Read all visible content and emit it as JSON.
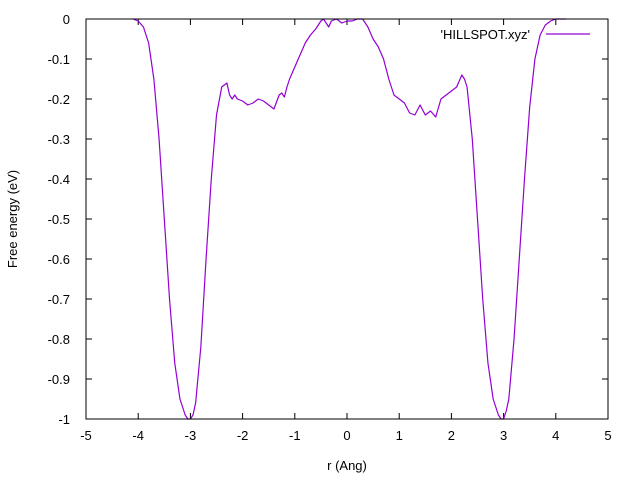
{
  "chart_data": {
    "type": "line",
    "title": "",
    "xlabel": "r (Ang)",
    "ylabel": "Free energy (eV)",
    "xlim": [
      -5,
      5
    ],
    "ylim": [
      -1,
      0
    ],
    "xticks": [
      -5,
      -4,
      -3,
      -2,
      -1,
      0,
      1,
      2,
      3,
      4,
      5
    ],
    "yticks": [
      0,
      -0.1,
      -0.2,
      -0.3,
      -0.4,
      -0.5,
      -0.6,
      -0.7,
      -0.8,
      -0.9,
      -1
    ],
    "xtick_labels": [
      "-5",
      "-4",
      "-3",
      "-2",
      "-1",
      "0",
      "1",
      "2",
      "3",
      "4",
      "5"
    ],
    "ytick_labels": [
      "0",
      "-0.1",
      "-0.2",
      "-0.3",
      "-0.4",
      "-0.5",
      "-0.6",
      "-0.7",
      "-0.8",
      "-0.9",
      "-1"
    ],
    "grid": false,
    "legend_position": "top-right",
    "series": [
      {
        "name": "'HILLSPOT.xyz'",
        "color": "#9400d3",
        "x": [
          -4.1,
          -4.0,
          -3.9,
          -3.8,
          -3.7,
          -3.6,
          -3.5,
          -3.4,
          -3.3,
          -3.2,
          -3.1,
          -3.05,
          -3.0,
          -2.95,
          -2.9,
          -2.8,
          -2.7,
          -2.6,
          -2.5,
          -2.4,
          -2.3,
          -2.25,
          -2.2,
          -2.15,
          -2.1,
          -2.0,
          -1.9,
          -1.8,
          -1.7,
          -1.6,
          -1.5,
          -1.4,
          -1.3,
          -1.25,
          -1.2,
          -1.15,
          -1.1,
          -1.0,
          -0.9,
          -0.8,
          -0.7,
          -0.6,
          -0.5,
          -0.45,
          -0.4,
          -0.35,
          -0.3,
          -0.2,
          -0.1,
          0.0,
          0.1,
          0.2,
          0.3,
          0.35,
          0.4,
          0.5,
          0.6,
          0.7,
          0.8,
          0.9,
          1.0,
          1.1,
          1.2,
          1.3,
          1.4,
          1.5,
          1.6,
          1.7,
          1.8,
          1.9,
          2.0,
          2.1,
          2.2,
          2.25,
          2.3,
          2.4,
          2.5,
          2.6,
          2.7,
          2.8,
          2.9,
          2.95,
          3.0,
          3.05,
          3.1,
          3.2,
          3.3,
          3.4,
          3.5,
          3.6,
          3.7,
          3.8,
          3.9,
          4.0,
          4.1,
          4.2
        ],
        "y": [
          0.0,
          -0.005,
          -0.02,
          -0.06,
          -0.15,
          -0.3,
          -0.5,
          -0.7,
          -0.86,
          -0.95,
          -0.99,
          -1.0,
          -1.0,
          -0.99,
          -0.96,
          -0.82,
          -0.6,
          -0.4,
          -0.24,
          -0.17,
          -0.16,
          -0.19,
          -0.2,
          -0.19,
          -0.2,
          -0.205,
          -0.215,
          -0.21,
          -0.2,
          -0.205,
          -0.215,
          -0.225,
          -0.19,
          -0.185,
          -0.195,
          -0.17,
          -0.15,
          -0.12,
          -0.09,
          -0.06,
          -0.04,
          -0.025,
          -0.005,
          0.0,
          -0.01,
          -0.02,
          -0.005,
          0.0,
          -0.01,
          -0.005,
          -0.005,
          0.0,
          0.0,
          -0.01,
          -0.02,
          -0.05,
          -0.07,
          -0.1,
          -0.15,
          -0.19,
          -0.2,
          -0.21,
          -0.235,
          -0.24,
          -0.215,
          -0.24,
          -0.23,
          -0.245,
          -0.2,
          -0.19,
          -0.18,
          -0.17,
          -0.14,
          -0.15,
          -0.17,
          -0.3,
          -0.5,
          -0.7,
          -0.86,
          -0.95,
          -0.99,
          -1.0,
          -1.0,
          -0.98,
          -0.95,
          -0.8,
          -0.6,
          -0.4,
          -0.22,
          -0.1,
          -0.04,
          -0.015,
          -0.005,
          0.0,
          0.0,
          0.0
        ]
      }
    ]
  }
}
